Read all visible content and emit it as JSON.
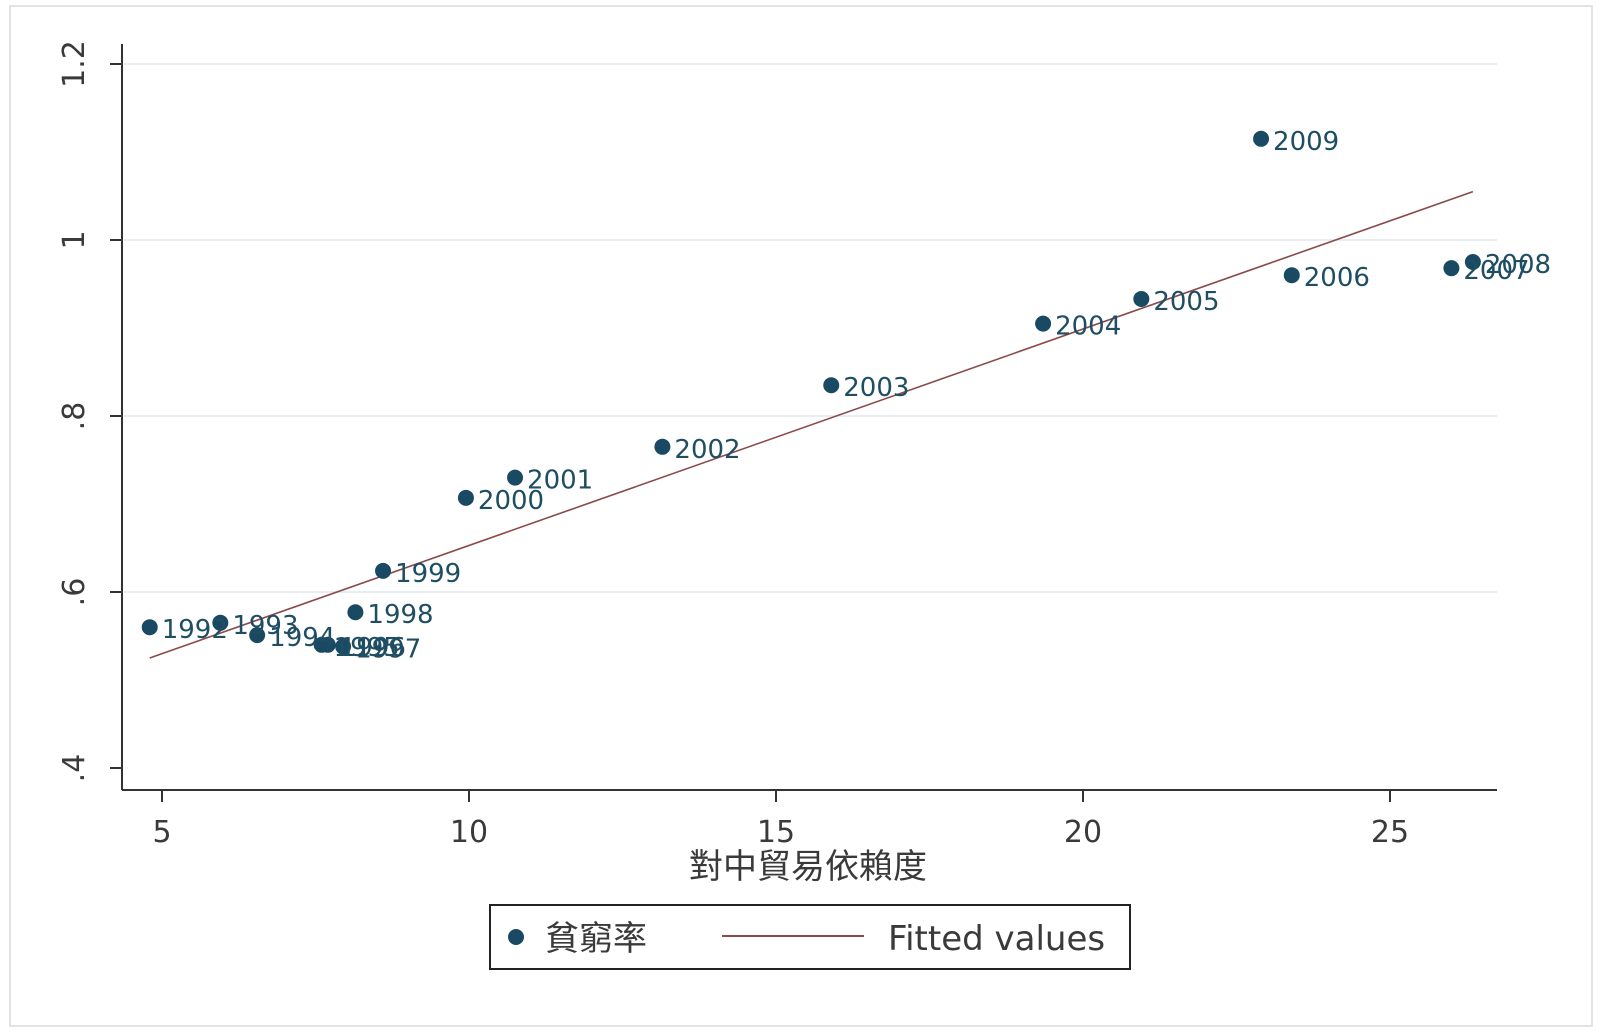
{
  "chart_data": {
    "type": "scatter",
    "xlabel": "對中貿易依賴度",
    "ylabel": "",
    "xlim": [
      4.7,
      26.8
    ],
    "ylim": [
      0.4,
      1.25
    ],
    "x_ticks": [
      5,
      10,
      15,
      20,
      25
    ],
    "y_ticks": [
      0.4,
      0.6,
      0.8,
      1.0,
      1.2
    ],
    "x_tick_labels": [
      "5",
      "10",
      "15",
      "20",
      "25"
    ],
    "y_tick_labels": [
      ".4",
      ".6",
      ".8",
      "1",
      "1.2"
    ],
    "grid": true,
    "legend_position": "bottom",
    "series": [
      {
        "name": "貧窮率",
        "type": "scatter",
        "color": "#1a4a63",
        "points": [
          {
            "label": "1992",
            "x": 4.8,
            "y": 0.56
          },
          {
            "label": "1993",
            "x": 5.95,
            "y": 0.565
          },
          {
            "label": "1994",
            "x": 6.55,
            "y": 0.551
          },
          {
            "label": "1995",
            "x": 7.6,
            "y": 0.54
          },
          {
            "label": "1996",
            "x": 7.7,
            "y": 0.54
          },
          {
            "label": "1997",
            "x": 7.95,
            "y": 0.538
          },
          {
            "label": "1998",
            "x": 8.15,
            "y": 0.577
          },
          {
            "label": "1999",
            "x": 8.6,
            "y": 0.624
          },
          {
            "label": "2000",
            "x": 9.95,
            "y": 0.707
          },
          {
            "label": "2001",
            "x": 10.75,
            "y": 0.73
          },
          {
            "label": "2002",
            "x": 13.15,
            "y": 0.765
          },
          {
            "label": "2003",
            "x": 15.9,
            "y": 0.835
          },
          {
            "label": "2004",
            "x": 19.35,
            "y": 0.905
          },
          {
            "label": "2005",
            "x": 20.95,
            "y": 0.933
          },
          {
            "label": "2006",
            "x": 23.4,
            "y": 0.96
          },
          {
            "label": "2007",
            "x": 26.0,
            "y": 0.968
          },
          {
            "label": "2008",
            "x": 26.35,
            "y": 0.975
          },
          {
            "label": "2009",
            "x": 22.9,
            "y": 1.115
          }
        ]
      },
      {
        "name": "Fitted values",
        "type": "line",
        "color": "#8b4a4a",
        "x": [
          4.8,
          26.35
        ],
        "values": [
          0.525,
          1.055
        ]
      }
    ]
  }
}
